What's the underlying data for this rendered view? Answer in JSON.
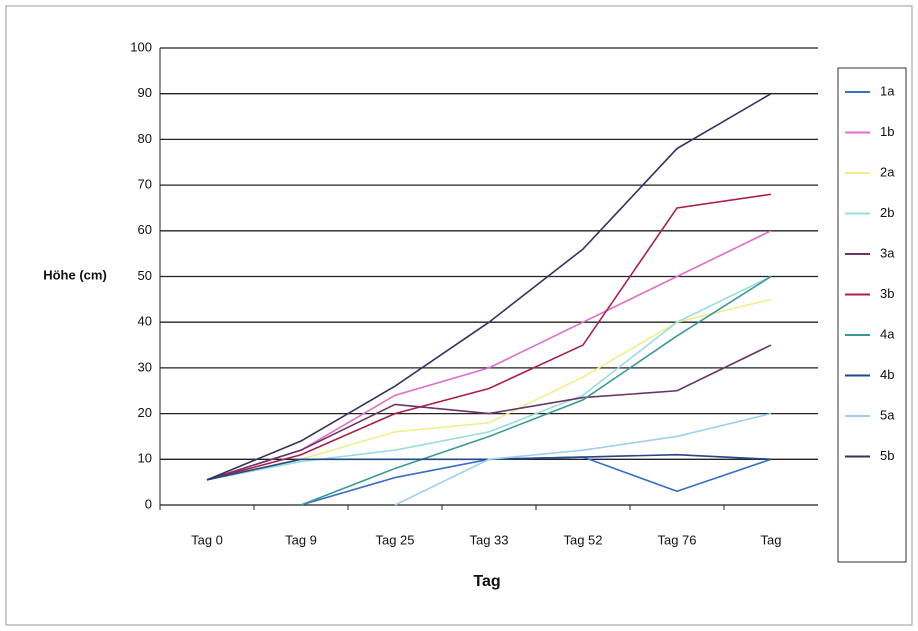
{
  "chart_data": {
    "type": "line",
    "y_label": "Höhe (cm)",
    "x_label": "Tag",
    "categories": [
      "Tag 0",
      "Tag 9",
      "Tag 25",
      "Tag 33",
      "Tag 52",
      "Tag 76",
      "Tag"
    ],
    "ylim": [
      0,
      100
    ],
    "yticks": [
      0,
      10,
      20,
      30,
      40,
      50,
      60,
      70,
      80,
      90,
      100
    ],
    "grid": true,
    "legend": "right",
    "series": [
      {
        "name": "1a",
        "color": "#3a6fc8",
        "values": [
          null,
          0,
          6,
          10,
          10.5,
          3,
          10
        ]
      },
      {
        "name": "1b",
        "color": "#dd6fcc",
        "values": [
          5.5,
          12,
          24,
          30,
          40,
          50,
          60
        ]
      },
      {
        "name": "2a",
        "color": "#eeee8a",
        "values": [
          5.5,
          10,
          16,
          18,
          28,
          40,
          45
        ]
      },
      {
        "name": "2b",
        "color": "#99dddd",
        "values": [
          5.5,
          9.5,
          12,
          16,
          24,
          40,
          50
        ]
      },
      {
        "name": "3a",
        "color": "#6a3466",
        "values": [
          5.5,
          12,
          22,
          20,
          23.5,
          25,
          35
        ]
      },
      {
        "name": "3b",
        "color": "#a8204a",
        "values": [
          5.5,
          11,
          20,
          25.5,
          35,
          65,
          68
        ]
      },
      {
        "name": "4a",
        "color": "#3a9a9a",
        "values": [
          null,
          0,
          8,
          15,
          23,
          37,
          50
        ]
      },
      {
        "name": "4b",
        "color": "#23488a",
        "values": [
          5.5,
          10,
          10,
          10,
          10.5,
          11,
          10
        ]
      },
      {
        "name": "5a",
        "color": "#9fd0ec",
        "values": [
          null,
          null,
          0,
          10,
          12,
          15,
          20
        ]
      },
      {
        "name": "5b",
        "color": "#33335e",
        "values": [
          5.5,
          14,
          26,
          40,
          56,
          78,
          90
        ]
      }
    ]
  }
}
